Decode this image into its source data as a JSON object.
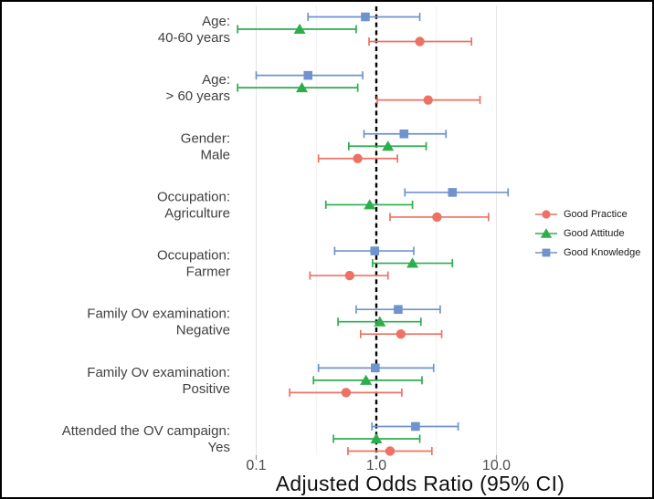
{
  "figure": {
    "background": "#ffffff",
    "border_color": "#000000"
  },
  "chart_data": {
    "type": "forest",
    "title": "",
    "x_axis": {
      "label": "Adjusted Odds Ratio (95% CI)",
      "scale": "log10",
      "ticks": [
        0.1,
        1.0,
        10.0
      ],
      "tick_labels": [
        "0.1",
        "1.0",
        "10.0"
      ],
      "minor_gridlines": [
        0.3162,
        3.162
      ],
      "reference_line": 1.0,
      "range": [
        0.06,
        14
      ]
    },
    "grid": "on",
    "legend": {
      "position": "right",
      "items": [
        {
          "label": "Good Practice",
          "marker": "circle",
          "color": "#ed7265"
        },
        {
          "label": "Good Attitude",
          "marker": "triangle",
          "color": "#2ead4d"
        },
        {
          "label": "Good Knowledge",
          "marker": "square",
          "color": "#7092cd"
        }
      ]
    },
    "row_order_top_to_bottom": [
      "Good Knowledge",
      "Good Attitude",
      "Good Practice"
    ],
    "groups": [
      {
        "label": [
          "Age:",
          "40-60 years"
        ],
        "points": [
          {
            "series": "Good Knowledge",
            "est": 0.81,
            "lo": 0.27,
            "hi": 2.3
          },
          {
            "series": "Good Attitude",
            "est": 0.23,
            "lo": 0.07,
            "hi": 0.68
          },
          {
            "series": "Good Practice",
            "est": 2.3,
            "lo": 0.87,
            "hi": 6.2
          }
        ]
      },
      {
        "label": [
          "Age:",
          "> 60 years"
        ],
        "points": [
          {
            "series": "Good Knowledge",
            "est": 0.27,
            "lo": 0.1,
            "hi": 0.77
          },
          {
            "series": "Good Attitude",
            "est": 0.24,
            "lo": 0.07,
            "hi": 0.7
          },
          {
            "series": "Good Practice",
            "est": 2.7,
            "lo": 1.02,
            "hi": 7.3
          }
        ]
      },
      {
        "label": [
          "Gender:",
          "Male"
        ],
        "points": [
          {
            "series": "Good Knowledge",
            "est": 1.7,
            "lo": 0.79,
            "hi": 3.8
          },
          {
            "series": "Good Attitude",
            "est": 1.25,
            "lo": 0.59,
            "hi": 2.6
          },
          {
            "series": "Good Practice",
            "est": 0.7,
            "lo": 0.33,
            "hi": 1.5
          }
        ]
      },
      {
        "label": [
          "Occupation:",
          "Agriculture"
        ],
        "points": [
          {
            "series": "Good Knowledge",
            "est": 4.3,
            "lo": 1.73,
            "hi": 12.5
          },
          {
            "series": "Good Attitude",
            "est": 0.88,
            "lo": 0.38,
            "hi": 2.0
          },
          {
            "series": "Good Practice",
            "est": 3.2,
            "lo": 1.3,
            "hi": 8.6
          }
        ]
      },
      {
        "label": [
          "Occupation:",
          "Farmer"
        ],
        "points": [
          {
            "series": "Good Knowledge",
            "est": 0.97,
            "lo": 0.45,
            "hi": 2.05
          },
          {
            "series": "Good Attitude",
            "est": 2.0,
            "lo": 0.93,
            "hi": 4.3
          },
          {
            "series": "Good Practice",
            "est": 0.6,
            "lo": 0.28,
            "hi": 1.25
          }
        ]
      },
      {
        "label": [
          "Family Ov examination:",
          "Negative"
        ],
        "points": [
          {
            "series": "Good Knowledge",
            "est": 1.52,
            "lo": 0.68,
            "hi": 3.4
          },
          {
            "series": "Good Attitude",
            "est": 1.07,
            "lo": 0.48,
            "hi": 2.35
          },
          {
            "series": "Good Practice",
            "est": 1.6,
            "lo": 0.74,
            "hi": 3.5
          }
        ]
      },
      {
        "label": [
          "Family Ov examination:",
          "Positive"
        ],
        "points": [
          {
            "series": "Good Knowledge",
            "est": 0.98,
            "lo": 0.33,
            "hi": 3.0
          },
          {
            "series": "Good Attitude",
            "est": 0.82,
            "lo": 0.3,
            "hi": 2.4
          },
          {
            "series": "Good Practice",
            "est": 0.56,
            "lo": 0.19,
            "hi": 1.63
          }
        ]
      },
      {
        "label": [
          "Attended the OV campaign:",
          "Yes"
        ],
        "points": [
          {
            "series": "Good Knowledge",
            "est": 2.12,
            "lo": 0.92,
            "hi": 4.8
          },
          {
            "series": "Good Attitude",
            "est": 1.0,
            "lo": 0.44,
            "hi": 2.3
          },
          {
            "series": "Good Practice",
            "est": 1.3,
            "lo": 0.58,
            "hi": 2.9
          }
        ]
      }
    ],
    "colors": {
      "gridline_major": "#e5e5e5",
      "gridline_minor": "#f1f1f1",
      "reference_line": "#000000",
      "tick_label": "#4d4d4d",
      "category_label": "#404040",
      "axis_title": "#111111"
    }
  }
}
